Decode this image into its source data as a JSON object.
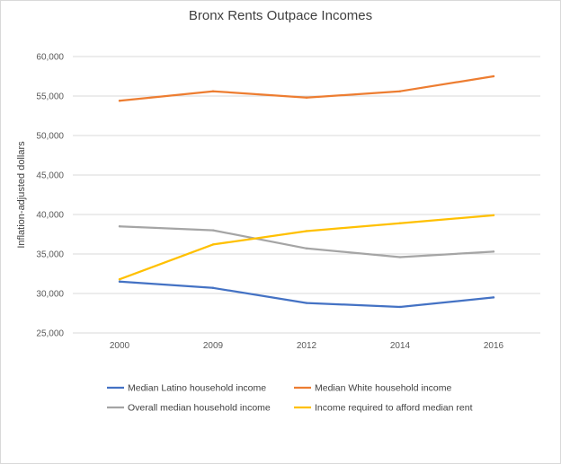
{
  "chart_data": {
    "type": "line",
    "title": "Bronx Rents Outpace Incomes",
    "xlabel": "",
    "ylabel": "Inflation-adjusted dollars",
    "categories": [
      "2000",
      "2009",
      "2012",
      "2014",
      "2016"
    ],
    "ylim": [
      25000,
      60000
    ],
    "yticks": [
      25000,
      30000,
      35000,
      40000,
      45000,
      50000,
      55000,
      60000
    ],
    "ytick_labels": [
      "25,000",
      "30,000",
      "35,000",
      "40,000",
      "45,000",
      "50,000",
      "55,000",
      "60,000"
    ],
    "grid": true,
    "legend_position": "bottom",
    "series": [
      {
        "name": "Median Latino household income",
        "color": "#4472c4",
        "values": [
          31500,
          30700,
          28800,
          28300,
          29500
        ]
      },
      {
        "name": "Median White household income",
        "color": "#ed7d31",
        "values": [
          54400,
          55600,
          54800,
          55600,
          57500
        ]
      },
      {
        "name": "Overall median household income",
        "color": "#a5a5a5",
        "values": [
          38500,
          38000,
          35700,
          34600,
          35300
        ]
      },
      {
        "name": "Income required to afford median rent",
        "color": "#ffc000",
        "values": [
          31800,
          36200,
          37900,
          38900,
          39900
        ]
      }
    ]
  }
}
